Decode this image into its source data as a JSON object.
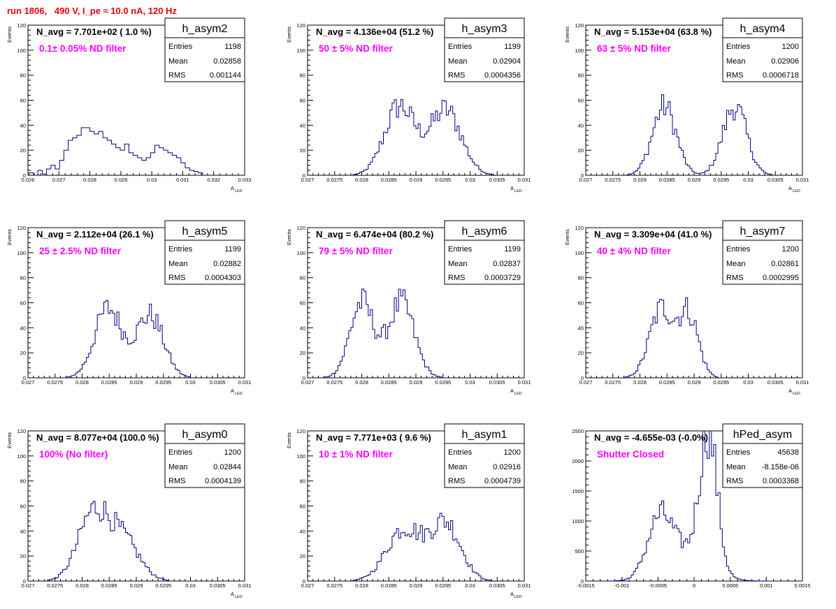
{
  "title": "run 1806,   490 V, I_pe ≈ 10.0 nA, 120 Hz",
  "colors": {
    "title": "#e8000b",
    "histogram_line": "#00007f",
    "filter_label": "#ff00ff"
  },
  "stat_labels": {
    "entries": "Entries",
    "mean": "Mean",
    "rms": "RMS"
  },
  "chart_data": [
    {
      "type": "histogram",
      "name": "h_asym2",
      "navg_text": "N_avg = 7.701e+02 ( 1.0 %)",
      "filter_text": "0.1± 0.05% ND filter",
      "stats": {
        "entries": "1198",
        "mean": "0.02858",
        "rms": "0.001144"
      },
      "xlabel": "A",
      "xlabel_sub": "LED",
      "ylabel": "Events",
      "xlim": [
        0.026,
        0.033
      ],
      "ylim": [
        0,
        120
      ],
      "xticks": [
        0.026,
        0.027,
        0.028,
        0.029,
        0.03,
        0.031,
        0.032,
        0.033
      ],
      "xticklabels": [
        "0.026",
        "0.027",
        "0.028",
        "0.029",
        "0.03",
        "0.031",
        "0.032",
        "0.033"
      ],
      "yticks": [
        0,
        20,
        40,
        60,
        80,
        100,
        120
      ],
      "yticklabels": [
        "0",
        "20",
        "40",
        "60",
        "80",
        "100",
        "120"
      ],
      "binned": [
        [
          0.02604,
          2
        ],
        [
          0.02632,
          4
        ],
        [
          0.02646,
          1
        ],
        [
          0.0266,
          5
        ],
        [
          0.02674,
          8
        ],
        [
          0.02688,
          5
        ],
        [
          0.02702,
          12
        ],
        [
          0.02716,
          20
        ],
        [
          0.0273,
          28
        ],
        [
          0.02744,
          30
        ],
        [
          0.02758,
          32
        ],
        [
          0.02772,
          38
        ],
        [
          0.02786,
          38
        ],
        [
          0.028,
          35
        ],
        [
          0.02814,
          33
        ],
        [
          0.02828,
          35
        ],
        [
          0.02842,
          30
        ],
        [
          0.02856,
          28
        ],
        [
          0.0287,
          25
        ],
        [
          0.02884,
          22
        ],
        [
          0.02898,
          20
        ],
        [
          0.02912,
          25
        ],
        [
          0.02926,
          18
        ],
        [
          0.0294,
          16
        ],
        [
          0.02954,
          14
        ],
        [
          0.02968,
          12
        ],
        [
          0.02982,
          14
        ],
        [
          0.02996,
          18
        ],
        [
          0.0301,
          24
        ],
        [
          0.03024,
          22
        ],
        [
          0.03038,
          20
        ],
        [
          0.03052,
          18
        ],
        [
          0.03066,
          16
        ],
        [
          0.0308,
          14
        ],
        [
          0.03094,
          10
        ],
        [
          0.03108,
          6
        ],
        [
          0.03122,
          4
        ],
        [
          0.03136,
          3
        ],
        [
          0.0315,
          2
        ]
      ]
    },
    {
      "type": "histogram",
      "name": "h_asym3",
      "navg_text": "N_avg = 4.136e+04 (51.2 %)",
      "filter_text": "50 ± 5% ND filter",
      "stats": {
        "entries": "1199",
        "mean": "0.02904",
        "rms": "0.0004356"
      },
      "xlabel": "A",
      "xlabel_sub": "LED",
      "ylabel": "Events",
      "xlim": [
        0.027,
        0.031
      ],
      "ylim": [
        0,
        120
      ],
      "xticks": [
        0.027,
        0.0275,
        0.028,
        0.0285,
        0.029,
        0.0295,
        0.03,
        0.0305,
        0.031
      ],
      "xticklabels": [
        "0.027",
        "0.0275",
        "0.028",
        "0.0285",
        "0.029",
        "0.0295",
        "0.03",
        "0.0305",
        "0.031"
      ],
      "yticks": [
        0,
        20,
        40,
        60,
        80,
        100,
        120
      ],
      "yticklabels": [
        "0",
        "20",
        "40",
        "60",
        "80",
        "100",
        "120"
      ],
      "peaks": [
        [
          0.0287,
          0.00028,
          55
        ],
        [
          0.02955,
          0.00029,
          52
        ]
      ]
    },
    {
      "type": "histogram",
      "name": "h_asym4",
      "navg_text": "N_avg = 5.153e+04 (63.8 %)",
      "filter_text": "63 ± 5% ND filter",
      "stats": {
        "entries": "1200",
        "mean": "0.02906",
        "rms": "0.0006718"
      },
      "xlabel": "A",
      "xlabel_sub": "LED",
      "ylabel": "Events",
      "xlim": [
        0.027,
        0.031
      ],
      "ylim": [
        0,
        120
      ],
      "xticks": [
        0.027,
        0.0275,
        0.028,
        0.0285,
        0.029,
        0.0295,
        0.03,
        0.0305,
        0.031
      ],
      "xticklabels": [
        "0.027",
        "0.0275",
        "0.028",
        "0.0285",
        "0.029",
        "0.0295",
        "0.03",
        "0.0305",
        "0.031"
      ],
      "yticks": [
        0,
        20,
        40,
        60,
        80,
        100,
        120
      ],
      "yticklabels": [
        "0",
        "20",
        "40",
        "60",
        "80",
        "100",
        "120"
      ],
      "peaks": [
        [
          0.02845,
          0.00022,
          55
        ],
        [
          0.02975,
          0.00022,
          55
        ]
      ]
    },
    {
      "type": "histogram",
      "name": "h_asym5",
      "navg_text": "N_avg = 2.112e+04 (26.1 %)",
      "filter_text": "25 ± 2.5% ND filter",
      "stats": {
        "entries": "1199",
        "mean": "0.02882",
        "rms": "0.0004303"
      },
      "xlabel": "A",
      "xlabel_sub": "LED",
      "ylabel": "Events",
      "xlim": [
        0.027,
        0.031
      ],
      "ylim": [
        0,
        120
      ],
      "xticks": [
        0.027,
        0.0275,
        0.028,
        0.0285,
        0.029,
        0.0295,
        0.03,
        0.0305,
        0.031
      ],
      "xticklabels": [
        "0.027",
        "0.0275",
        "0.028",
        "0.0285",
        "0.029",
        "0.0295",
        "0.03",
        "0.0305",
        "0.031"
      ],
      "yticks": [
        0,
        20,
        40,
        60,
        80,
        100,
        120
      ],
      "yticklabels": [
        "0",
        "20",
        "40",
        "60",
        "80",
        "100",
        "120"
      ],
      "peaks": [
        [
          0.02848,
          0.00025,
          55
        ],
        [
          0.02925,
          0.00025,
          50
        ]
      ]
    },
    {
      "type": "histogram",
      "name": "h_asym6",
      "navg_text": "N_avg = 6.474e+04 (80.2 %)",
      "filter_text": "79 ± 5% ND filter",
      "stats": {
        "entries": "1199",
        "mean": "0.02837",
        "rms": "0.0003729"
      },
      "xlabel": "A",
      "xlabel_sub": "LED",
      "ylabel": "Events",
      "xlim": [
        0.027,
        0.031
      ],
      "ylim": [
        0,
        120
      ],
      "xticks": [
        0.027,
        0.0275,
        0.028,
        0.0285,
        0.029,
        0.0295,
        0.03,
        0.0305,
        0.031
      ],
      "xticklabels": [
        "0.027",
        "0.0275",
        "0.028",
        "0.0285",
        "0.029",
        "0.0295",
        "0.03",
        "0.0305",
        "0.031"
      ],
      "yticks": [
        0,
        20,
        40,
        60,
        80,
        100,
        120
      ],
      "yticklabels": [
        "0",
        "20",
        "40",
        "60",
        "80",
        "100",
        "120"
      ],
      "peaks": [
        [
          0.028,
          0.00022,
          60
        ],
        [
          0.02873,
          0.00024,
          60
        ]
      ]
    },
    {
      "type": "histogram",
      "name": "h_asym7",
      "navg_text": "N_avg = 3.309e+04 (41.0 %)",
      "filter_text": "40 ± 4% ND filter",
      "stats": {
        "entries": "1200",
        "mean": "0.02861",
        "rms": "0.0002995"
      },
      "xlabel": "A",
      "xlabel_sub": "LED",
      "ylabel": "Events",
      "xlim": [
        0.027,
        0.031
      ],
      "ylim": [
        0,
        120
      ],
      "xticks": [
        0.027,
        0.0275,
        0.028,
        0.0285,
        0.029,
        0.0295,
        0.03,
        0.0305,
        0.031
      ],
      "xticklabels": [
        "0.027",
        "0.0275",
        "0.028",
        "0.0285",
        "0.029",
        "0.0295",
        "0.03",
        "0.0305",
        "0.031"
      ],
      "yticks": [
        0,
        20,
        40,
        60,
        80,
        100,
        120
      ],
      "yticklabels": [
        "0",
        "20",
        "40",
        "60",
        "80",
        "100",
        "120"
      ],
      "peaks": [
        [
          0.0284,
          0.00022,
          55
        ],
        [
          0.0289,
          0.00018,
          50
        ]
      ]
    },
    {
      "type": "histogram",
      "name": "h_asym0",
      "navg_text": "N_avg = 8.077e+04 (100.0 %)",
      "filter_text": "100% (No filter)",
      "stats": {
        "entries": "1200",
        "mean": "0.02844",
        "rms": "0.0004139"
      },
      "xlabel": "A",
      "xlabel_sub": "LED",
      "ylabel": "Events",
      "xlim": [
        0.027,
        0.031
      ],
      "ylim": [
        0,
        120
      ],
      "xticks": [
        0.027,
        0.0275,
        0.028,
        0.0285,
        0.029,
        0.0295,
        0.03,
        0.0305,
        0.031
      ],
      "xticklabels": [
        "0.027",
        "0.0275",
        "0.028",
        "0.0285",
        "0.029",
        "0.0295",
        "0.03",
        "0.0305",
        "0.031"
      ],
      "yticks": [
        0,
        20,
        40,
        60,
        80,
        100,
        120
      ],
      "yticklabels": [
        "0",
        "20",
        "40",
        "60",
        "80",
        "100",
        "120"
      ],
      "peaks": [
        [
          0.0282,
          0.00028,
          52
        ],
        [
          0.02875,
          0.0003,
          32
        ]
      ]
    },
    {
      "type": "histogram",
      "name": "h_asym1",
      "navg_text": "N_avg = 7.771e+03 ( 9.6 %)",
      "filter_text": "10 ± 1% ND filter",
      "stats": {
        "entries": "1200",
        "mean": "0.02916",
        "rms": "0.0004739"
      },
      "xlabel": "A",
      "xlabel_sub": "LED",
      "ylabel": "Events",
      "xlim": [
        0.027,
        0.031
      ],
      "ylim": [
        0,
        120
      ],
      "xticks": [
        0.027,
        0.0275,
        0.028,
        0.0285,
        0.029,
        0.0295,
        0.03,
        0.0305,
        0.031
      ],
      "xticklabels": [
        "0.027",
        "0.0275",
        "0.028",
        "0.0285",
        "0.029",
        "0.0295",
        "0.03",
        "0.0305",
        "0.031"
      ],
      "yticks": [
        0,
        20,
        40,
        60,
        80,
        100,
        120
      ],
      "yticklabels": [
        "0",
        "20",
        "40",
        "60",
        "80",
        "100",
        "120"
      ],
      "peaks": [
        [
          0.02878,
          0.00032,
          42
        ],
        [
          0.02955,
          0.00028,
          46
        ]
      ]
    },
    {
      "type": "histogram",
      "name": "hPed_asym",
      "navg_text": "N_avg = -4.655e-03 (-0.0%)",
      "filter_text": "Shutter Closed",
      "stats": {
        "entries": "45638",
        "mean": "-8.158e-06",
        "rms": "0.0003368"
      },
      "xlabel": "",
      "xlabel_sub": "",
      "ylabel": "",
      "xlim": [
        -0.0015,
        0.0015
      ],
      "ylim": [
        0,
        2500
      ],
      "xticks": [
        -0.0015,
        -0.001,
        -0.0005,
        0,
        0.0005,
        0.001,
        0.0015
      ],
      "xticklabels": [
        "-0.0015",
        "-0.001",
        "-0.0005",
        "0",
        "0.0005",
        "0.001",
        "0.0015"
      ],
      "yticks": [
        0,
        500,
        1000,
        1500,
        2000,
        2500
      ],
      "yticklabels": [
        "0",
        "500",
        "1000",
        "1500",
        "2000",
        "2500"
      ],
      "peaks": [
        [
          -0.00048,
          0.00017,
          900
        ],
        [
          0.0002,
          0.00012,
          2250
        ],
        [
          -0.0001,
          0.0003,
          480
        ]
      ]
    }
  ]
}
